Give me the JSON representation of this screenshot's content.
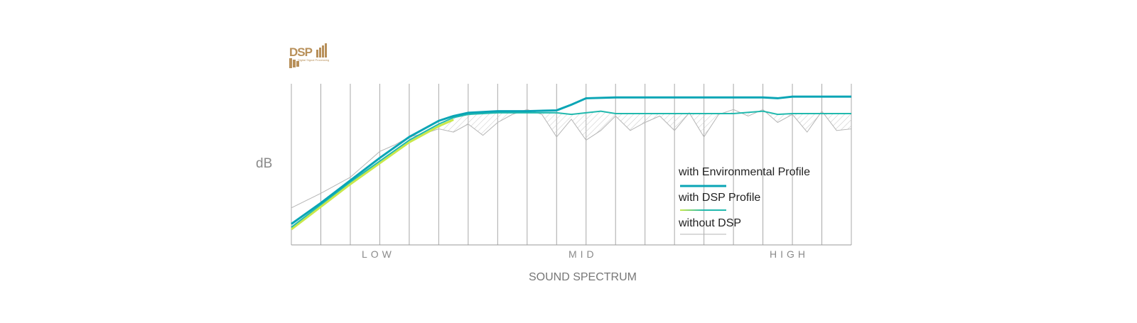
{
  "logo": {
    "text": "DSP",
    "subtext": "Digital Signal Processing",
    "color": "#b8905a"
  },
  "chart_data": {
    "type": "line",
    "ylabel": "dB",
    "xlabel": "SOUND SPECTRUM",
    "x_categories": [
      "LOW",
      "MID",
      "HIGH"
    ],
    "xlim": [
      0,
      19
    ],
    "ylim": [
      0,
      10
    ],
    "vertical_gridlines": 19,
    "legend_position": "inside-right",
    "series": [
      {
        "name": "with Environmental Profile",
        "color": "#0aa5b5",
        "x": [
          0,
          1,
          2,
          3,
          4,
          5,
          5.5,
          6,
          7,
          8,
          9,
          9.5,
          10,
          11,
          12,
          13,
          14,
          15,
          16,
          16.5,
          17,
          18,
          19
        ],
        "y": [
          1.3,
          2.6,
          4.0,
          5.4,
          6.7,
          7.7,
          8.0,
          8.2,
          8.3,
          8.3,
          8.35,
          8.7,
          9.1,
          9.15,
          9.15,
          9.15,
          9.15,
          9.15,
          9.15,
          9.1,
          9.2,
          9.2,
          9.2
        ]
      },
      {
        "name": "with DSP Profile",
        "color": "#22b9ae",
        "x": [
          0,
          1,
          2,
          3,
          4,
          5,
          5.5,
          6,
          7,
          8,
          9,
          9.5,
          10,
          10.5,
          11,
          12,
          13,
          14,
          15,
          16,
          16.5,
          17,
          18,
          19
        ],
        "y": [
          1.1,
          2.5,
          3.9,
          5.2,
          6.5,
          7.5,
          7.9,
          8.1,
          8.2,
          8.2,
          8.2,
          8.1,
          8.2,
          8.3,
          8.15,
          8.15,
          8.15,
          8.15,
          8.15,
          8.3,
          8.1,
          8.15,
          8.15,
          8.15
        ]
      },
      {
        "name": "without DSP",
        "color": "#b5b5b5",
        "x": [
          0,
          1,
          2,
          3,
          3.5,
          4,
          4.5,
          5,
          5.5,
          6,
          6.5,
          7,
          7.5,
          8,
          8.5,
          9,
          9.5,
          10,
          10.5,
          11,
          11.5,
          12,
          12.5,
          13,
          13.5,
          14,
          14.5,
          15,
          15.5,
          16,
          16.5,
          17,
          17.5,
          18,
          18.5,
          19
        ],
        "y": [
          2.3,
          3.2,
          4.2,
          5.8,
          6.2,
          6.7,
          6.9,
          7.2,
          7.0,
          7.5,
          6.8,
          7.6,
          8.1,
          8.4,
          8.1,
          6.7,
          7.8,
          6.5,
          7.1,
          8.0,
          7.1,
          7.6,
          8.0,
          7.1,
          8.2,
          6.7,
          8.1,
          8.4,
          8.0,
          8.4,
          7.6,
          8.1,
          7.0,
          8.3,
          7.1,
          7.2
        ]
      }
    ]
  }
}
